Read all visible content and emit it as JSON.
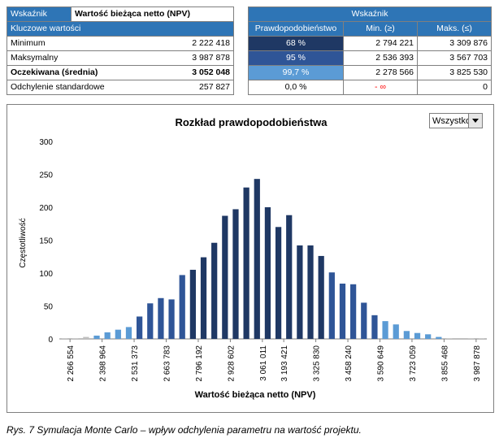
{
  "left_table": {
    "header_label": "Wskaźnik",
    "header_value": "Wartość bieżąca netto (NPV)",
    "section_label": "Kluczowe wartości",
    "rows": [
      {
        "label": "Minimum",
        "value": "2 222 418"
      },
      {
        "label": "Maksymalny",
        "value": "3 987 878"
      },
      {
        "label": "Oczekiwana (średnia)",
        "value": "3 052 048"
      },
      {
        "label": "Odchylenie standardowe",
        "value": "257 827"
      }
    ]
  },
  "right_table": {
    "title": "Wskaźnik",
    "col_prob": "Prawdopodobieństwo",
    "col_min": "Min. (≥)",
    "col_max": "Maks. (≤)",
    "rows": [
      {
        "prob": "68 %",
        "min": "2 794 221",
        "max": "3 309 876",
        "color": "#1f3864"
      },
      {
        "prob": "95 %",
        "min": "2 536 393",
        "max": "3 567 703",
        "color": "#2f5597"
      },
      {
        "prob": "99,7 %",
        "min": "2 278 566",
        "max": "3 825 530",
        "color": "#5b9bd5"
      },
      {
        "prob": "0,0 %",
        "min": "- ∞",
        "max": "0",
        "color": "#ffffff"
      }
    ]
  },
  "dropdown": {
    "value": "Wszystko"
  },
  "caption": "Rys. 7 Symulacja Monte Carlo – wpływ odchylenia parametru na wartość projektu.",
  "chart_data": {
    "type": "bar",
    "title": "Rozkład prawdopodobieństwa",
    "xlabel": "Wartość bieżąca netto (NPV)",
    "ylabel": "Częstotliwość",
    "ylim": [
      0,
      300
    ],
    "yticks": [
      0,
      50,
      100,
      150,
      200,
      250,
      300
    ],
    "xtick_labels": [
      "2 266 554",
      "2 398 964",
      "2 531 373",
      "2 663 783",
      "2 796 192",
      "2 928 602",
      "3 061 011",
      "3 193 421",
      "3 325 830",
      "3 458 240",
      "3 590 649",
      "3 723 059",
      "3 855 468",
      "3 987 878"
    ],
    "values": [
      1,
      1,
      3,
      5,
      10,
      14,
      18,
      34,
      54,
      62,
      60,
      97,
      105,
      124,
      146,
      187,
      197,
      230,
      243,
      200,
      170,
      188,
      142,
      142,
      126,
      101,
      84,
      83,
      55,
      36,
      27,
      22,
      12,
      9,
      7,
      3,
      1,
      0,
      1,
      1
    ],
    "colors": {
      "dark": "#1f3864",
      "medium": "#2f5597",
      "light": "#5b9bd5",
      "pale": "#bfbfbf"
    },
    "grid": false,
    "legend": "none"
  }
}
